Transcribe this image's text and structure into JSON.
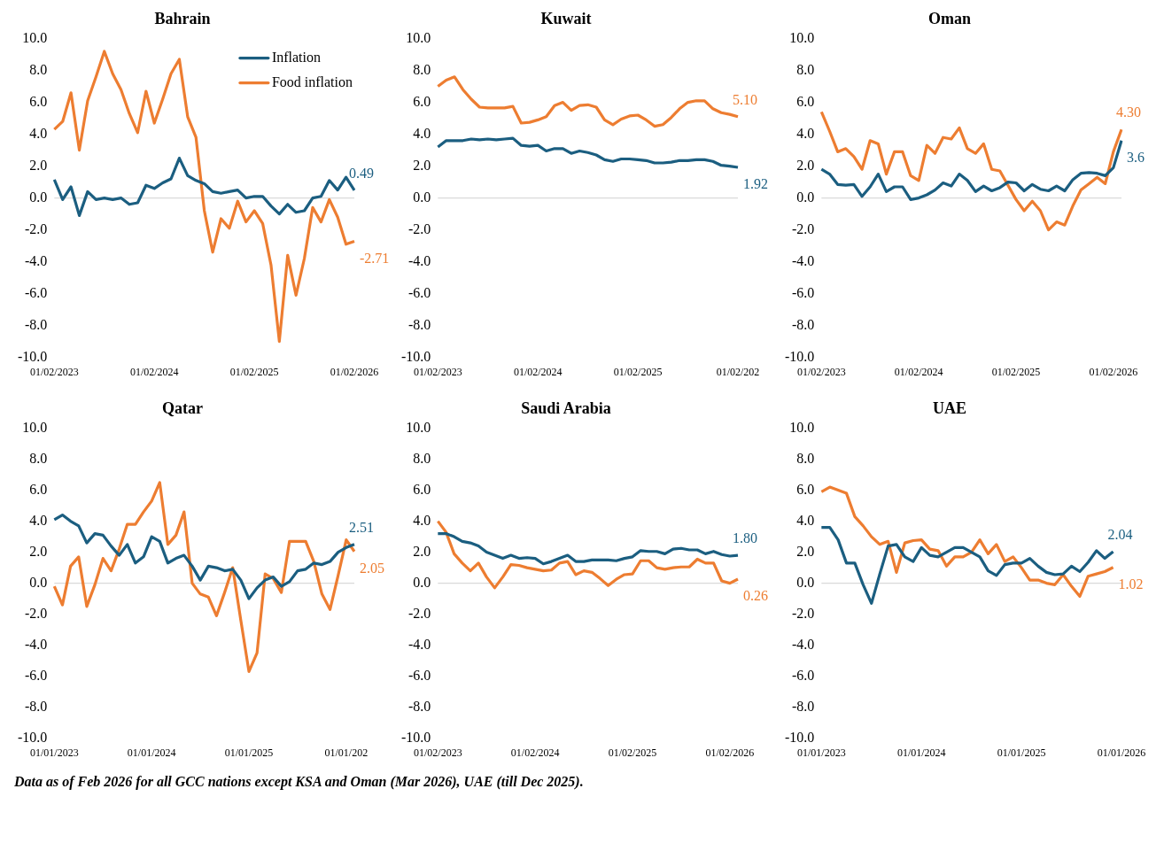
{
  "chart_data": [
    {
      "type": "line",
      "title": "Bahrain",
      "categories": [
        "01/02/2023",
        null,
        null,
        null,
        null,
        null,
        null,
        null,
        null,
        null,
        null,
        null,
        "01/02/2024",
        null,
        null,
        null,
        null,
        null,
        null,
        null,
        null,
        null,
        null,
        null,
        "01/02/2025",
        null,
        null,
        null,
        null,
        null,
        null,
        null,
        null,
        null,
        null,
        null,
        "01/02/2026"
      ],
      "series": [
        {
          "name": "Inflation",
          "color": "#1b5e80",
          "values": [
            1.15,
            -0.1,
            0.7,
            -1.1,
            0.4,
            -0.1,
            0.0,
            -0.1,
            0.0,
            -0.4,
            -0.3,
            0.8,
            0.6,
            0.95,
            1.2,
            2.5,
            1.4,
            1.1,
            0.9,
            0.4,
            0.3,
            0.4,
            0.5,
            0.0,
            0.1,
            0.1,
            -0.5,
            -1.0,
            -0.4,
            -0.9,
            -0.8,
            0.0,
            0.1,
            1.1,
            0.5,
            1.3,
            0.49
          ],
          "value_labels": [
            null,
            null,
            null,
            null,
            null,
            null,
            null,
            null,
            null,
            null,
            null,
            null,
            null,
            null,
            null,
            null,
            null,
            null,
            null,
            null,
            null,
            null,
            null,
            null,
            null,
            null,
            null,
            null,
            null,
            null,
            null,
            null,
            null,
            null,
            null,
            null,
            "0.49"
          ]
        },
        {
          "name": "Food inflation",
          "color": "#ed7d31",
          "values": [
            4.3,
            4.8,
            6.6,
            3.0,
            6.1,
            7.6,
            9.2,
            7.8,
            6.8,
            5.3,
            4.1,
            6.7,
            4.7,
            6.2,
            7.8,
            8.7,
            5.1,
            3.8,
            -0.8,
            -3.4,
            -1.3,
            -1.9,
            -0.2,
            -1.5,
            -0.8,
            -1.6,
            -4.2,
            -9.0,
            -3.6,
            -6.1,
            -3.8,
            -0.6,
            -1.5,
            -0.1,
            -1.2,
            -2.9,
            -2.71
          ],
          "value_labels": [
            null,
            null,
            null,
            null,
            null,
            null,
            null,
            null,
            null,
            null,
            null,
            null,
            null,
            null,
            null,
            null,
            null,
            null,
            null,
            null,
            null,
            null,
            null,
            null,
            null,
            null,
            null,
            null,
            null,
            null,
            null,
            null,
            null,
            null,
            null,
            null,
            "-2.71"
          ]
        }
      ],
      "ylim": [
        -10,
        10
      ],
      "yticks": [
        {
          "value": -10,
          "label": "-10.0"
        },
        {
          "value": -8,
          "label": "-8.0"
        },
        {
          "value": -6,
          "label": "-6.0"
        },
        {
          "value": -4,
          "label": "-4.0"
        },
        {
          "value": -2,
          "label": "-2.0"
        },
        {
          "value": 0,
          "label": "0.0"
        },
        {
          "value": 2,
          "label": "2.0"
        },
        {
          "value": 4,
          "label": "4.0"
        },
        {
          "value": 6,
          "label": "6.0"
        },
        {
          "value": 8,
          "label": "8.0"
        },
        {
          "value": 10,
          "label": "10.0"
        }
      ],
      "marker": "none",
      "legend": "top right",
      "ref_lines": [
        {
          "axis": "y",
          "value": 0,
          "color": "#d9d9d9"
        }
      ]
    },
    {
      "type": "line",
      "title": "Kuwait",
      "categories": [
        "01/02/2023",
        null,
        null,
        null,
        null,
        null,
        null,
        null,
        null,
        null,
        null,
        null,
        "01/02/2024",
        null,
        null,
        null,
        null,
        null,
        null,
        null,
        null,
        null,
        null,
        null,
        "01/02/2025",
        null,
        null,
        null,
        null,
        null,
        null,
        null,
        null,
        null,
        null,
        null,
        "01/02/202"
      ],
      "series": [
        {
          "color": "#1b5e80",
          "values": [
            3.2,
            3.6,
            3.6,
            3.6,
            3.7,
            3.65,
            3.7,
            3.65,
            3.7,
            3.75,
            3.3,
            3.25,
            3.3,
            2.95,
            3.1,
            3.1,
            2.8,
            2.95,
            2.85,
            2.7,
            2.4,
            2.3,
            2.45,
            2.45,
            2.4,
            2.35,
            2.2,
            2.2,
            2.25,
            2.35,
            2.35,
            2.4,
            2.4,
            2.3,
            2.05,
            2.0,
            1.92
          ],
          "value_labels": [
            null,
            null,
            null,
            null,
            null,
            null,
            null,
            null,
            null,
            null,
            null,
            null,
            null,
            null,
            null,
            null,
            null,
            null,
            null,
            null,
            null,
            null,
            null,
            null,
            null,
            null,
            null,
            null,
            null,
            null,
            null,
            null,
            null,
            null,
            null,
            null,
            "1.92"
          ]
        },
        {
          "color": "#ed7d31",
          "values": [
            7.0,
            7.4,
            7.6,
            6.8,
            6.2,
            5.7,
            5.65,
            5.65,
            5.65,
            5.75,
            4.7,
            4.75,
            4.9,
            5.1,
            5.8,
            6.0,
            5.5,
            5.8,
            5.85,
            5.7,
            4.9,
            4.6,
            4.95,
            5.15,
            5.2,
            4.9,
            4.5,
            4.6,
            5.05,
            5.6,
            6.0,
            6.1,
            6.1,
            5.6,
            5.35,
            5.25,
            5.1
          ],
          "value_labels": [
            null,
            null,
            null,
            null,
            null,
            null,
            null,
            null,
            null,
            null,
            null,
            null,
            null,
            null,
            null,
            null,
            null,
            null,
            null,
            null,
            null,
            null,
            null,
            null,
            null,
            null,
            null,
            null,
            null,
            null,
            null,
            null,
            null,
            null,
            null,
            null,
            "5.10"
          ]
        }
      ],
      "ylim": [
        -10,
        10
      ],
      "yticks": [
        {
          "value": -10,
          "label": "-10.0"
        },
        {
          "value": -8,
          "label": "-8.0"
        },
        {
          "value": -6,
          "label": "-6.0"
        },
        {
          "value": -4,
          "label": "-4.0"
        },
        {
          "value": -2,
          "label": "-2.0"
        },
        {
          "value": 0,
          "label": "0.0"
        },
        {
          "value": 2,
          "label": "2.0"
        },
        {
          "value": 4,
          "label": "4.0"
        },
        {
          "value": 6,
          "label": "6.0"
        },
        {
          "value": 8,
          "label": "8.0"
        },
        {
          "value": 10,
          "label": "10.0"
        }
      ],
      "marker": "none",
      "ref_lines": [
        {
          "axis": "y",
          "value": 0,
          "color": "#d9d9d9"
        }
      ]
    },
    {
      "type": "line",
      "title": "Oman",
      "categories": [
        "01/02/2023",
        null,
        null,
        null,
        null,
        null,
        null,
        null,
        null,
        null,
        null,
        null,
        "01/02/2024",
        null,
        null,
        null,
        null,
        null,
        null,
        null,
        null,
        null,
        null,
        null,
        "01/02/2025",
        null,
        null,
        null,
        null,
        null,
        null,
        null,
        null,
        null,
        null,
        null,
        "01/02/2026",
        null
      ],
      "series": [
        {
          "color": "#1b5e80",
          "values": [
            1.8,
            1.5,
            0.85,
            0.8,
            0.85,
            0.1,
            0.7,
            1.5,
            0.4,
            0.7,
            0.7,
            -0.1,
            0.0,
            0.2,
            0.5,
            0.95,
            0.75,
            1.5,
            1.1,
            0.4,
            0.75,
            0.45,
            0.65,
            1.0,
            0.95,
            0.45,
            0.85,
            0.55,
            0.45,
            0.75,
            0.45,
            1.15,
            1.55,
            1.6,
            1.55,
            1.4,
            1.9,
            3.6
          ],
          "value_labels": [
            null,
            null,
            null,
            null,
            null,
            null,
            null,
            null,
            null,
            null,
            null,
            null,
            null,
            null,
            null,
            null,
            null,
            null,
            null,
            null,
            null,
            null,
            null,
            null,
            null,
            null,
            null,
            null,
            null,
            null,
            null,
            null,
            null,
            null,
            null,
            null,
            null,
            "3.6"
          ]
        },
        {
          "color": "#ed7d31",
          "values": [
            5.4,
            4.2,
            2.9,
            3.1,
            2.6,
            1.8,
            3.6,
            3.4,
            1.5,
            2.9,
            2.9,
            1.4,
            1.1,
            3.3,
            2.8,
            3.8,
            3.7,
            4.4,
            3.1,
            2.8,
            3.4,
            1.8,
            1.7,
            0.8,
            -0.1,
            -0.8,
            -0.2,
            -0.8,
            -2.0,
            -1.5,
            -1.7,
            -0.5,
            0.5,
            0.9,
            1.3,
            0.9,
            2.9,
            4.3
          ],
          "value_labels": [
            null,
            null,
            null,
            null,
            null,
            null,
            null,
            null,
            null,
            null,
            null,
            null,
            null,
            null,
            null,
            null,
            null,
            null,
            null,
            null,
            null,
            null,
            null,
            null,
            null,
            null,
            null,
            null,
            null,
            null,
            null,
            null,
            null,
            null,
            null,
            null,
            null,
            "4.30"
          ]
        }
      ],
      "ylim": [
        -10,
        10
      ],
      "yticks": [
        {
          "value": -10,
          "label": "-10.0"
        },
        {
          "value": -8,
          "label": "-8.0"
        },
        {
          "value": -6,
          "label": "-6.0"
        },
        {
          "value": -4,
          "label": "-4.0"
        },
        {
          "value": -2,
          "label": "-2.0"
        },
        {
          "value": 0,
          "label": "0.0"
        },
        {
          "value": 2,
          "label": "2.0"
        },
        {
          "value": 4,
          "label": "4.0"
        },
        {
          "value": 6,
          "label": "6.0"
        },
        {
          "value": 8,
          "label": "8.0"
        },
        {
          "value": 10,
          "label": "10.0"
        }
      ],
      "marker": "none",
      "ref_lines": [
        {
          "axis": "y",
          "value": 0,
          "color": "#d9d9d9"
        }
      ]
    },
    {
      "type": "line",
      "title": "Qatar",
      "categories": [
        "01/01/2023",
        null,
        null,
        null,
        null,
        null,
        null,
        null,
        null,
        null,
        null,
        null,
        "01/01/2024",
        null,
        null,
        null,
        null,
        null,
        null,
        null,
        null,
        null,
        null,
        null,
        "01/01/2025",
        null,
        null,
        null,
        null,
        null,
        null,
        null,
        null,
        null,
        null,
        null,
        "01/01/202",
        null
      ],
      "series": [
        {
          "color": "#1b5e80",
          "values": [
            4.1,
            4.4,
            4.0,
            3.7,
            2.6,
            3.2,
            3.1,
            2.4,
            1.8,
            2.5,
            1.3,
            1.7,
            3.0,
            2.7,
            1.3,
            1.6,
            1.8,
            1.1,
            0.2,
            1.1,
            1.0,
            0.8,
            0.9,
            0.2,
            -1.0,
            -0.3,
            0.2,
            0.4,
            -0.2,
            0.1,
            0.8,
            0.9,
            1.3,
            1.2,
            1.4,
            2.0,
            2.3,
            2.51
          ],
          "value_labels": [
            null,
            null,
            null,
            null,
            null,
            null,
            null,
            null,
            null,
            null,
            null,
            null,
            null,
            null,
            null,
            null,
            null,
            null,
            null,
            null,
            null,
            null,
            null,
            null,
            null,
            null,
            null,
            null,
            null,
            null,
            null,
            null,
            null,
            null,
            null,
            null,
            null,
            "2.51"
          ]
        },
        {
          "color": "#ed7d31",
          "values": [
            -0.2,
            -1.4,
            1.1,
            1.7,
            -1.5,
            -0.1,
            1.6,
            0.8,
            2.2,
            3.8,
            3.8,
            4.6,
            5.3,
            6.5,
            2.5,
            3.1,
            4.6,
            0.0,
            -0.7,
            -0.9,
            -2.1,
            -0.6,
            1.0,
            -2.4,
            -5.7,
            -4.5,
            0.6,
            0.3,
            -0.6,
            2.7,
            2.7,
            2.7,
            1.4,
            -0.7,
            -1.7,
            0.5,
            2.8,
            2.05
          ],
          "value_labels": [
            null,
            null,
            null,
            null,
            null,
            null,
            null,
            null,
            null,
            null,
            null,
            null,
            null,
            null,
            null,
            null,
            null,
            null,
            null,
            null,
            null,
            null,
            null,
            null,
            null,
            null,
            null,
            null,
            null,
            null,
            null,
            null,
            null,
            null,
            null,
            null,
            null,
            "2.05"
          ]
        }
      ],
      "ylim": [
        -10,
        10
      ],
      "yticks": [
        {
          "value": -10,
          "label": "-10.0"
        },
        {
          "value": -8,
          "label": "-8.0"
        },
        {
          "value": -6,
          "label": "-6.0"
        },
        {
          "value": -4,
          "label": "-4.0"
        },
        {
          "value": -2,
          "label": "-2.0"
        },
        {
          "value": 0,
          "label": "0.0"
        },
        {
          "value": 2,
          "label": "2.0"
        },
        {
          "value": 4,
          "label": "4.0"
        },
        {
          "value": 6,
          "label": "6.0"
        },
        {
          "value": 8,
          "label": "8.0"
        },
        {
          "value": 10,
          "label": "10.0"
        }
      ],
      "marker": "none",
      "ref_lines": [
        {
          "axis": "y",
          "value": 0,
          "color": "#d9d9d9"
        }
      ]
    },
    {
      "type": "line",
      "title": "Saudi Arabia",
      "categories": [
        "01/02/2023",
        null,
        null,
        null,
        null,
        null,
        null,
        null,
        null,
        null,
        null,
        null,
        "01/02/2024",
        null,
        null,
        null,
        null,
        null,
        null,
        null,
        null,
        null,
        null,
        null,
        "01/02/2025",
        null,
        null,
        null,
        null,
        null,
        null,
        null,
        null,
        null,
        null,
        null,
        "01/02/2026",
        null
      ],
      "series": [
        {
          "color": "#1b5e80",
          "values": [
            3.2,
            3.2,
            3.0,
            2.7,
            2.6,
            2.4,
            2.0,
            1.8,
            1.6,
            1.8,
            1.6,
            1.65,
            1.6,
            1.25,
            1.4,
            1.6,
            1.8,
            1.4,
            1.4,
            1.5,
            1.5,
            1.5,
            1.45,
            1.6,
            1.7,
            2.1,
            2.05,
            2.05,
            1.9,
            2.2,
            2.25,
            2.15,
            2.15,
            1.9,
            2.05,
            1.85,
            1.75,
            1.8
          ],
          "value_labels": [
            null,
            null,
            null,
            null,
            null,
            null,
            null,
            null,
            null,
            null,
            null,
            null,
            null,
            null,
            null,
            null,
            null,
            null,
            null,
            null,
            null,
            null,
            null,
            null,
            null,
            null,
            null,
            null,
            null,
            null,
            null,
            null,
            null,
            null,
            null,
            null,
            null,
            "1.80"
          ]
        },
        {
          "color": "#ed7d31",
          "values": [
            4.0,
            3.3,
            1.9,
            1.3,
            0.8,
            1.3,
            0.4,
            -0.3,
            0.4,
            1.2,
            1.15,
            1.0,
            0.9,
            0.8,
            0.85,
            1.3,
            1.4,
            0.55,
            0.8,
            0.7,
            0.3,
            -0.15,
            0.25,
            0.55,
            0.6,
            1.45,
            1.45,
            1.0,
            0.9,
            1.0,
            1.05,
            1.05,
            1.55,
            1.3,
            1.3,
            0.15,
            0.0,
            0.26
          ],
          "value_labels": [
            null,
            null,
            null,
            null,
            null,
            null,
            null,
            null,
            null,
            null,
            null,
            null,
            null,
            null,
            null,
            null,
            null,
            null,
            null,
            null,
            null,
            null,
            null,
            null,
            null,
            null,
            null,
            null,
            null,
            null,
            null,
            null,
            null,
            null,
            null,
            null,
            null,
            "0.26"
          ]
        }
      ],
      "ylim": [
        -10,
        10
      ],
      "yticks": [
        {
          "value": -10,
          "label": "-10.0"
        },
        {
          "value": -8,
          "label": "-8.0"
        },
        {
          "value": -6,
          "label": "-6.0"
        },
        {
          "value": -4,
          "label": "-4.0"
        },
        {
          "value": -2,
          "label": "-2.0"
        },
        {
          "value": 0,
          "label": "0.0"
        },
        {
          "value": 2,
          "label": "2.0"
        },
        {
          "value": 4,
          "label": "4.0"
        },
        {
          "value": 6,
          "label": "6.0"
        },
        {
          "value": 8,
          "label": "8.0"
        },
        {
          "value": 10,
          "label": "10.0"
        }
      ],
      "marker": "none",
      "ref_lines": [
        {
          "axis": "y",
          "value": 0,
          "color": "#d9d9d9"
        }
      ]
    },
    {
      "type": "line",
      "title": "UAE",
      "categories": [
        "01/01/2023",
        null,
        null,
        null,
        null,
        null,
        null,
        null,
        null,
        null,
        null,
        null,
        "01/01/2024",
        null,
        null,
        null,
        null,
        null,
        null,
        null,
        null,
        null,
        null,
        null,
        "01/01/2025",
        null,
        null,
        null,
        null,
        null,
        null,
        null,
        null,
        null,
        null,
        null,
        "01/01/2026"
      ],
      "series": [
        {
          "color": "#1b5e80",
          "values": [
            3.6,
            3.6,
            2.8,
            1.3,
            1.3,
            -0.1,
            -1.3,
            0.6,
            2.4,
            2.5,
            1.7,
            1.4,
            2.3,
            1.8,
            1.7,
            2.0,
            2.3,
            2.3,
            2.0,
            1.7,
            0.8,
            0.5,
            1.2,
            1.3,
            1.3,
            1.6,
            1.1,
            0.7,
            0.55,
            0.6,
            1.1,
            0.75,
            1.35,
            2.1,
            1.6,
            2.04,
            null
          ],
          "value_labels": [
            null,
            null,
            null,
            null,
            null,
            null,
            null,
            null,
            null,
            null,
            null,
            null,
            null,
            null,
            null,
            null,
            null,
            null,
            null,
            null,
            null,
            null,
            null,
            null,
            null,
            null,
            null,
            null,
            null,
            null,
            null,
            null,
            null,
            null,
            null,
            "2.04",
            null
          ]
        },
        {
          "color": "#ed7d31",
          "values": [
            5.9,
            6.2,
            6.0,
            5.8,
            4.3,
            3.7,
            3.0,
            2.5,
            2.7,
            0.7,
            2.6,
            2.75,
            2.8,
            2.2,
            2.1,
            1.1,
            1.7,
            1.7,
            2.0,
            2.8,
            1.9,
            2.5,
            1.4,
            1.7,
            1.0,
            0.2,
            0.2,
            0.0,
            -0.1,
            0.55,
            -0.2,
            -0.85,
            0.45,
            0.6,
            0.75,
            1.02,
            null
          ],
          "value_labels": [
            null,
            null,
            null,
            null,
            null,
            null,
            null,
            null,
            null,
            null,
            null,
            null,
            null,
            null,
            null,
            null,
            null,
            null,
            null,
            null,
            null,
            null,
            null,
            null,
            null,
            null,
            null,
            null,
            null,
            null,
            null,
            null,
            null,
            null,
            null,
            "1.02",
            null
          ]
        }
      ],
      "ylim": [
        -10,
        10
      ],
      "yticks": [
        {
          "value": -10,
          "label": "-10.0"
        },
        {
          "value": -8,
          "label": "-8.0"
        },
        {
          "value": -6,
          "label": "-6.0"
        },
        {
          "value": -4,
          "label": "-4.0"
        },
        {
          "value": -2,
          "label": "-2.0"
        },
        {
          "value": 0,
          "label": "0.0"
        },
        {
          "value": 2,
          "label": "2.0"
        },
        {
          "value": 4,
          "label": "4.0"
        },
        {
          "value": 6,
          "label": "6.0"
        },
        {
          "value": 8,
          "label": "8.0"
        },
        {
          "value": 10,
          "label": "10.0"
        }
      ],
      "marker": "none",
      "ref_lines": [
        {
          "axis": "y",
          "value": 0,
          "color": "#d9d9d9"
        }
      ],
      "annotations": [
        "Data as of Feb 2026 for all GCC nations except KSA and Oman (Mar 2026), UAE (till Dec 2025)."
      ]
    }
  ]
}
